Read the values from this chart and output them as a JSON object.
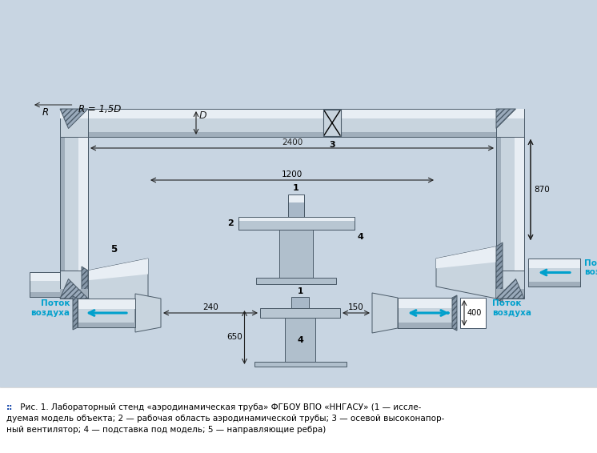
{
  "bg_color": "#c8d5e2",
  "pipe_lc": "#c8d4de",
  "pipe_hc": "#e8eef4",
  "pipe_mc": "#a0aebb",
  "pipe_dc": "#788898",
  "hatch_color": "#7a8a9a",
  "caption_line1_pre": "::",
  "caption_line1": "  Рис. 1. Лабораторный стенд «аэродинамическая труба» ФГБОУ ВПО «ННГАСУ» (1 — иссле-",
  "caption_line2": "дуемая модель объекта; 2 — рабочая область аэродинамической трубы; 3 — осевой высоконапор-",
  "caption_line3": "ный вентилятор; 4 — подставка под модель; 5 — направляющие ребра)",
  "bold_nums_line1": [
    "1"
  ],
  "cyan_color": "#00a0cc",
  "dim_color": "#222222",
  "label_color": "#222222"
}
